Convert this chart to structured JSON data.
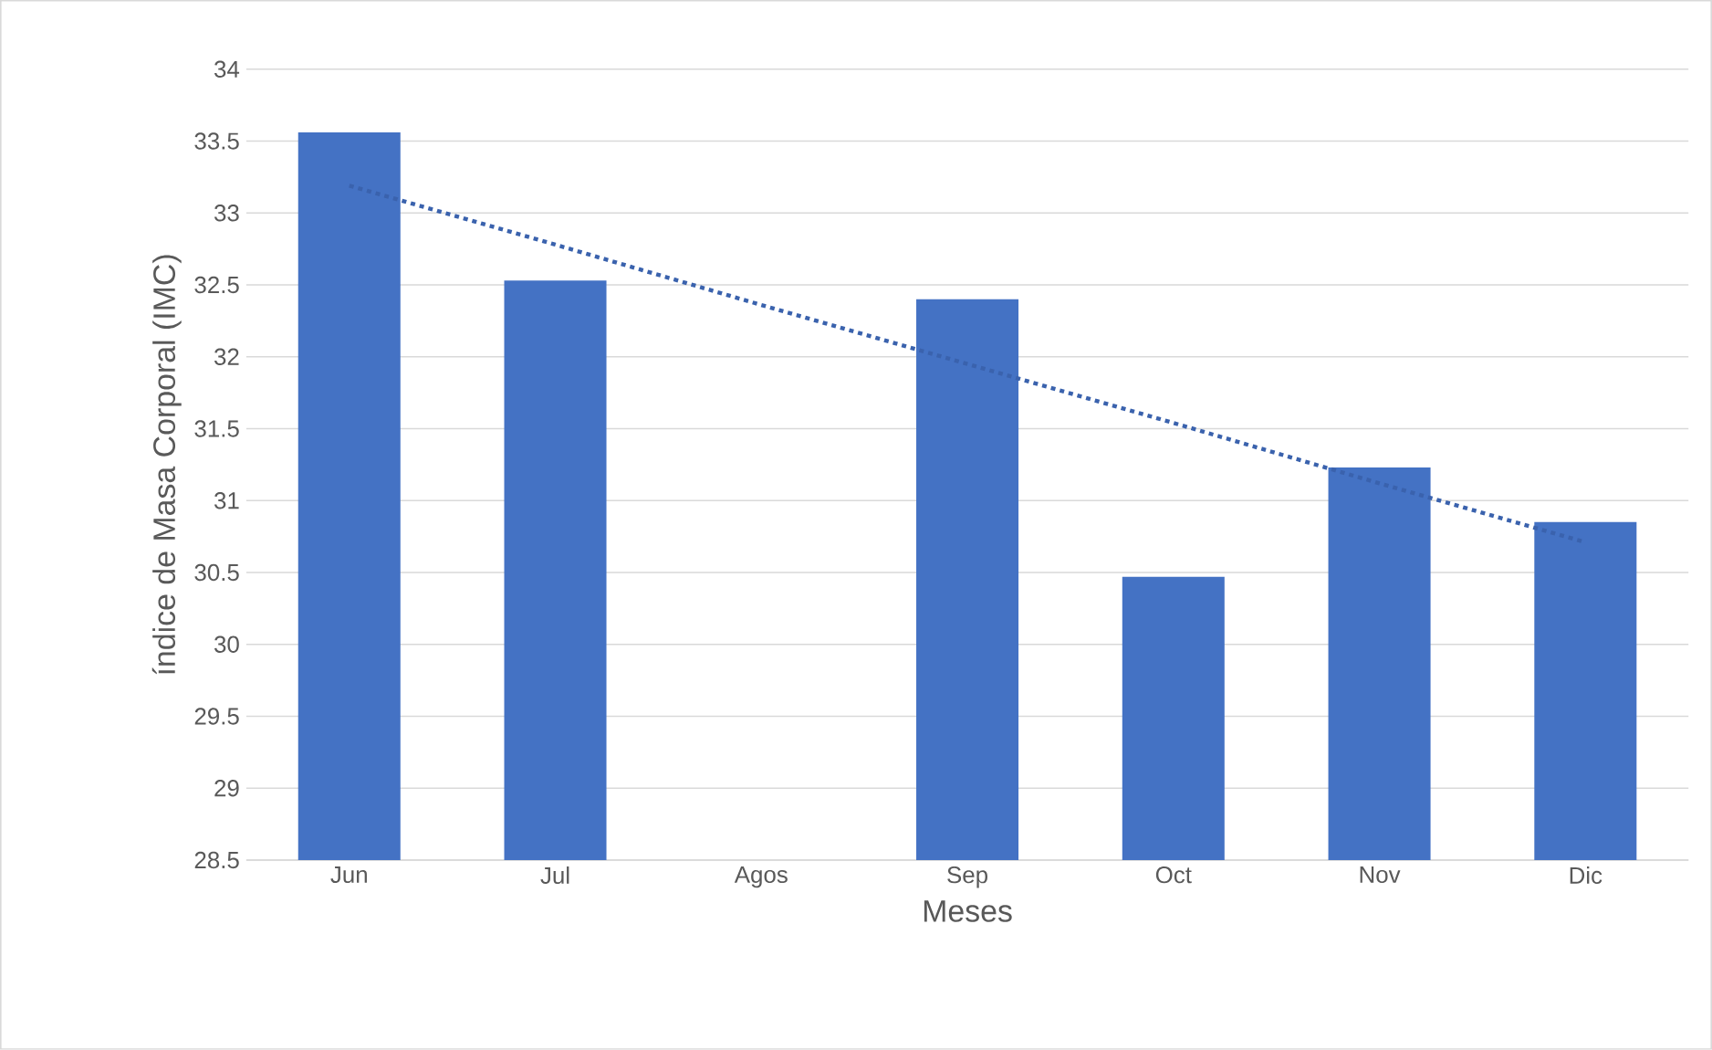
{
  "chart_data": {
    "type": "bar",
    "xlabel": "Meses",
    "ylabel": "índice de Masa Corporal (IMC)",
    "categories": [
      "Jun",
      "Jul",
      "Agos",
      "Sep",
      "Oct",
      "Nov",
      "Dic"
    ],
    "series": [
      {
        "color": "#4472c4",
        "values": [
          33.56,
          32.53,
          null,
          32.4,
          30.47,
          31.23,
          30.85
        ]
      },
      {
        "type": "line",
        "line_style": "dotted",
        "color": "#3a62ad",
        "values": [
          33.19,
          32.78,
          32.36,
          31.95,
          31.54,
          31.12,
          30.71
        ]
      }
    ],
    "ylim": [
      28.5,
      34
    ],
    "yticks": [
      28.5,
      29,
      29.5,
      30,
      30.5,
      31,
      31.5,
      32,
      32.5,
      33,
      33.5,
      34
    ],
    "grid": "y"
  }
}
